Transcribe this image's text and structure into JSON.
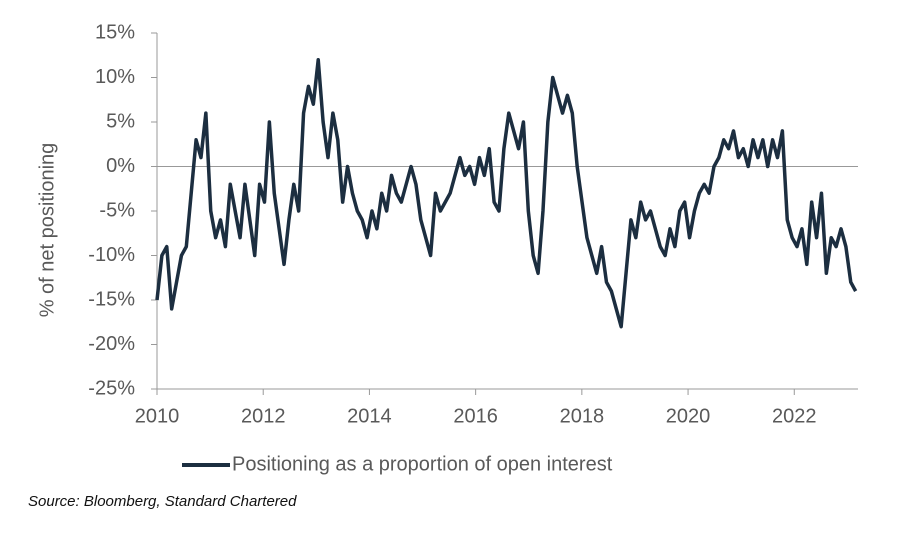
{
  "chart_data": {
    "type": "line",
    "ylabel": "% of net positioning",
    "source": "Source: Bloomberg, Standard Chartered",
    "xlim": [
      2010,
      2023.2
    ],
    "xticks": [
      2010,
      2012,
      2014,
      2016,
      2018,
      2020,
      2022
    ],
    "ylim": [
      -25,
      15
    ],
    "yticks": [
      {
        "value": -25,
        "label": "-25%"
      },
      {
        "value": -20,
        "label": "-20%"
      },
      {
        "value": -15,
        "label": "-15%"
      },
      {
        "value": -10,
        "label": "-10%"
      },
      {
        "value": -5,
        "label": "-5%"
      },
      {
        "value": 0,
        "label": "0%"
      },
      {
        "value": 5,
        "label": "5%"
      },
      {
        "value": 10,
        "label": "10%"
      },
      {
        "value": 15,
        "label": "15%"
      }
    ],
    "legend": "bottom",
    "x": [
      2010,
      2010.092,
      2010.184,
      2010.276,
      2010.368,
      2010.46,
      2010.552,
      2010.644,
      2010.736,
      2010.828,
      2010.92,
      2011.012,
      2011.104,
      2011.196,
      2011.288,
      2011.38,
      2011.472,
      2011.564,
      2011.656,
      2011.748,
      2011.84,
      2011.932,
      2012.024,
      2012.116,
      2012.208,
      2012.3,
      2012.392,
      2012.484,
      2012.576,
      2012.668,
      2012.76,
      2012.852,
      2012.944,
      2013.036,
      2013.128,
      2013.22,
      2013.312,
      2013.404,
      2013.496,
      2013.588,
      2013.68,
      2013.772,
      2013.864,
      2013.956,
      2014.048,
      2014.14,
      2014.232,
      2014.324,
      2014.416,
      2014.508,
      2014.6,
      2014.692,
      2014.784,
      2014.876,
      2014.968,
      2015.06,
      2015.152,
      2015.244,
      2015.336,
      2015.428,
      2015.52,
      2015.612,
      2015.704,
      2015.796,
      2015.888,
      2015.98,
      2016.072,
      2016.164,
      2016.256,
      2016.348,
      2016.44,
      2016.532,
      2016.624,
      2016.716,
      2016.808,
      2016.9,
      2016.992,
      2017.084,
      2017.176,
      2017.268,
      2017.36,
      2017.452,
      2017.544,
      2017.636,
      2017.728,
      2017.82,
      2017.912,
      2018.004,
      2018.096,
      2018.188,
      2018.28,
      2018.372,
      2018.464,
      2018.556,
      2018.648,
      2018.74,
      2018.832,
      2018.924,
      2019.016,
      2019.108,
      2019.2,
      2019.292,
      2019.384,
      2019.476,
      2019.568,
      2019.66,
      2019.752,
      2019.844,
      2019.936,
      2020.028,
      2020.12,
      2020.212,
      2020.304,
      2020.396,
      2020.488,
      2020.58,
      2020.672,
      2020.764,
      2020.856,
      2020.948,
      2021.04,
      2021.132,
      2021.224,
      2021.316,
      2021.408,
      2021.5,
      2021.592,
      2021.684,
      2021.776,
      2021.868,
      2021.96,
      2022.052,
      2022.144,
      2022.236,
      2022.328,
      2022.42,
      2022.512,
      2022.604,
      2022.696,
      2022.788,
      2022.88,
      2022.972,
      2023.064,
      2023.156
    ],
    "series": [
      {
        "name": "Positioning as a proportion of open interest",
        "color": "#1c2e40",
        "values": [
          -15,
          -10,
          -9,
          -16,
          -13,
          -10,
          -9,
          -3,
          3,
          1,
          6,
          -5,
          -8,
          -6,
          -9,
          -2,
          -5,
          -8,
          -2,
          -6,
          -10,
          -2,
          -4,
          5,
          -3,
          -7,
          -11,
          -6,
          -2,
          -5,
          6,
          9,
          7,
          12,
          5,
          1,
          6,
          3,
          -4,
          0,
          -3,
          -5,
          -6,
          -8,
          -5,
          -7,
          -3,
          -5,
          -1,
          -3,
          -4,
          -2,
          0,
          -2,
          -6,
          -8,
          -10,
          -3,
          -5,
          -4,
          -3,
          -1,
          1,
          -1,
          0,
          -2,
          1,
          -1,
          2,
          -4,
          -5,
          2,
          6,
          4,
          2,
          5,
          -5,
          -10,
          -12,
          -5,
          5,
          10,
          8,
          6,
          8,
          6,
          0,
          -4,
          -8,
          -10,
          -12,
          -9,
          -13,
          -14,
          -16,
          -18,
          -12,
          -6,
          -8,
          -4,
          -6,
          -5,
          -7,
          -9,
          -10,
          -7,
          -9,
          -5,
          -4,
          -8,
          -5,
          -3,
          -2,
          -3,
          0,
          1,
          3,
          2,
          4,
          1,
          2,
          0,
          3,
          1,
          3,
          0,
          3,
          1,
          4,
          -6,
          -8,
          -9,
          -7,
          -11,
          -4,
          -8,
          -3,
          -12,
          -8,
          -9,
          -7,
          -9,
          -13,
          -14
        ]
      }
    ]
  }
}
